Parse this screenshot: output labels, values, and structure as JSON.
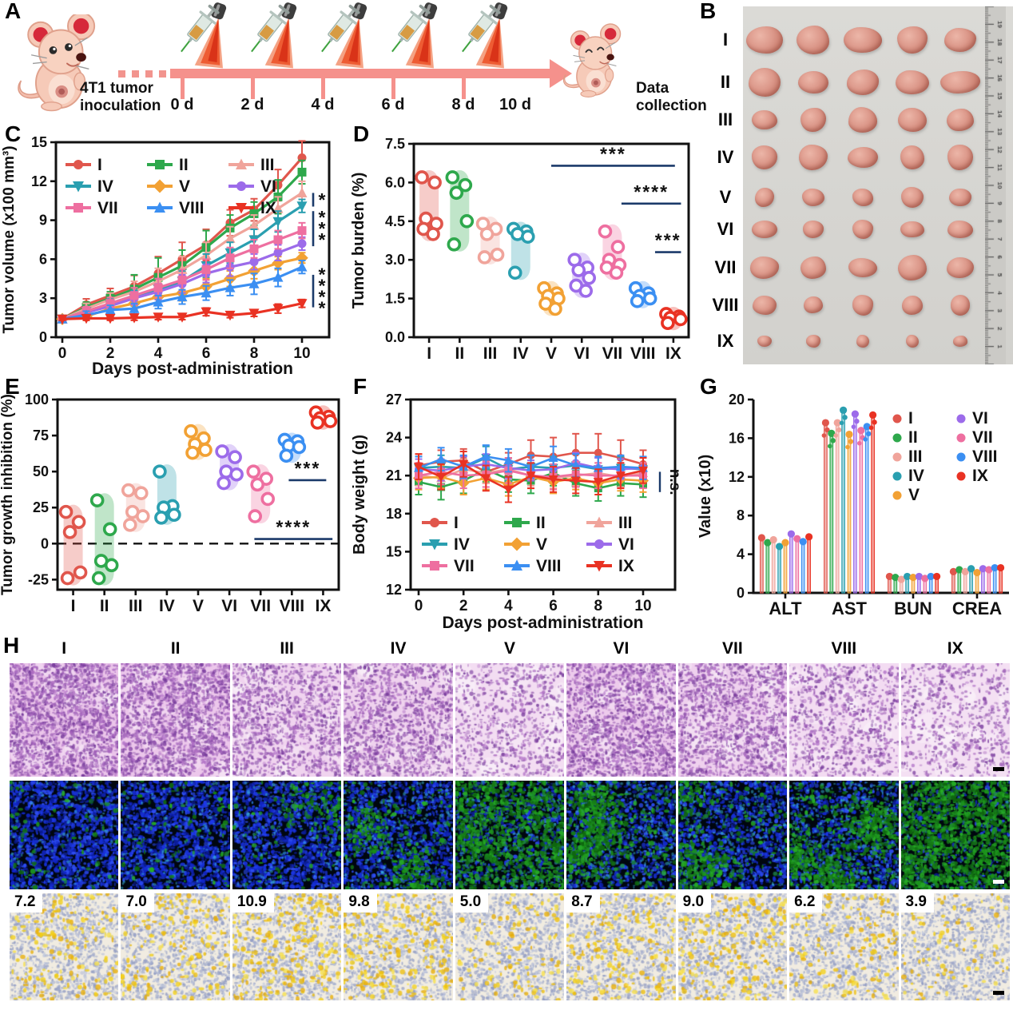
{
  "panels": {
    "A": {
      "label": "A",
      "inoculation_label": "4T1 tumor inoculation",
      "collection_label": "Data collection",
      "timeline_days": [
        "0 d",
        "2 d",
        "4 d",
        "6 d",
        "8 d",
        "10 d"
      ]
    },
    "B": {
      "label": "B",
      "row_labels": [
        "I",
        "II",
        "III",
        "IV",
        "V",
        "VI",
        "VII",
        "VIII",
        "IX"
      ],
      "columns": 5,
      "ruler_range": [
        0,
        20
      ],
      "tumor_sizes": [
        [
          44,
          35
        ],
        [
          44,
          33
        ],
        [
          36,
          29
        ],
        [
          33,
          29
        ],
        [
          28,
          23
        ],
        [
          29,
          23
        ],
        [
          33,
          28
        ],
        [
          27,
          24
        ],
        [
          18,
          15
        ]
      ]
    },
    "C": {
      "label": "C"
    },
    "D": {
      "label": "D"
    },
    "E": {
      "label": "E"
    },
    "F": {
      "label": "F"
    },
    "G": {
      "label": "G"
    },
    "H": {
      "label": "H",
      "column_labels": [
        "I",
        "II",
        "III",
        "IV",
        "V",
        "VI",
        "VII",
        "VIII",
        "IX"
      ],
      "ihc_values": [
        "7.2",
        "7.0",
        "10.9",
        "9.8",
        "5.0",
        "8.7",
        "9.0",
        "6.2",
        "3.9"
      ],
      "he_density": [
        0.95,
        0.9,
        0.55,
        0.6,
        0.28,
        0.8,
        0.62,
        0.33,
        0.22
      ],
      "fluor_green": [
        0.05,
        0.06,
        0.13,
        0.28,
        0.72,
        0.5,
        0.33,
        0.58,
        0.96
      ]
    }
  },
  "groups": [
    {
      "name": "I",
      "color": "#e0564c",
      "marker": "circle"
    },
    {
      "name": "II",
      "color": "#2ea84c",
      "marker": "square"
    },
    {
      "name": "III",
      "color": "#f0a49b",
      "marker": "triangle-up"
    },
    {
      "name": "IV",
      "color": "#2a9fb0",
      "marker": "triangle-down"
    },
    {
      "name": "V",
      "color": "#f2a134",
      "marker": "diamond"
    },
    {
      "name": "VI",
      "color": "#9c6bea",
      "marker": "circle"
    },
    {
      "name": "VII",
      "color": "#ee6fa0",
      "marker": "square"
    },
    {
      "name": "VIII",
      "color": "#3b8ff2",
      "marker": "triangle-up"
    },
    {
      "name": "IX",
      "color": "#e93223",
      "marker": "triangle-down"
    }
  ],
  "chart_data": [
    {
      "panel": "C",
      "type": "line",
      "xlabel": "Days post-administration",
      "ylabel": "Tumor volume (x100 mm³)",
      "x": [
        0,
        1,
        2,
        3,
        4,
        5,
        6,
        7,
        8,
        9,
        10
      ],
      "xticks": [
        0,
        2,
        4,
        6,
        8,
        10
      ],
      "ylim": [
        0,
        15
      ],
      "yticks": [
        0,
        3,
        6,
        9,
        12,
        15
      ],
      "legend_order": [
        [
          "I",
          "II",
          "III"
        ],
        [
          "IV",
          "V",
          "VI"
        ],
        [
          "VII",
          "VIII",
          "IX"
        ]
      ],
      "series": [
        {
          "name": "I",
          "values": [
            1.4,
            2.5,
            3.2,
            3.9,
            4.9,
            6.0,
            7.1,
            8.8,
            9.8,
            11.7,
            13.8
          ],
          "err": [
            0.15,
            0.45,
            0.55,
            0.85,
            1.3,
            1.3,
            1.2,
            1.0,
            0.85,
            1.2,
            1.3
          ]
        },
        {
          "name": "II",
          "values": [
            1.4,
            2.3,
            3.0,
            3.7,
            4.6,
            5.5,
            6.9,
            8.4,
            9.5,
            10.8,
            12.7
          ],
          "err": [
            0.15,
            0.4,
            0.5,
            1.1,
            1.5,
            1.2,
            1.3,
            1.0,
            0.9,
            1.3,
            0.9
          ]
        },
        {
          "name": "III",
          "values": [
            1.4,
            2.2,
            2.9,
            3.5,
            4.3,
            5.2,
            6.3,
            7.6,
            8.6,
            9.9,
            11.1
          ],
          "err": [
            0.15,
            0.4,
            0.5,
            0.8,
            1.0,
            1.0,
            1.0,
            0.9,
            0.8,
            0.9,
            0.9
          ]
        },
        {
          "name": "IV",
          "values": [
            1.4,
            2.0,
            2.5,
            3.0,
            3.7,
            4.3,
            5.5,
            6.5,
            7.5,
            8.9,
            10.1
          ],
          "err": [
            0.15,
            0.35,
            0.45,
            0.6,
            0.8,
            0.8,
            0.9,
            0.8,
            0.8,
            0.8,
            0.5
          ]
        },
        {
          "name": "V",
          "values": [
            1.4,
            1.6,
            2.2,
            2.6,
            3.1,
            3.4,
            3.9,
            4.5,
            5.1,
            5.7,
            6.1
          ],
          "err": [
            0.15,
            0.3,
            0.4,
            0.5,
            0.6,
            0.6,
            0.6,
            0.6,
            0.6,
            0.5,
            0.4
          ]
        },
        {
          "name": "VI",
          "values": [
            1.4,
            1.9,
            2.4,
            3.0,
            3.5,
            4.1,
            4.9,
            5.4,
            5.8,
            6.5,
            7.2
          ],
          "err": [
            0.15,
            0.3,
            0.4,
            0.5,
            0.6,
            0.7,
            0.7,
            0.7,
            0.6,
            0.6,
            0.5
          ]
        },
        {
          "name": "VII",
          "values": [
            1.4,
            2.0,
            2.6,
            3.2,
            3.8,
            4.4,
            5.2,
            6.1,
            6.8,
            7.5,
            8.2
          ],
          "err": [
            0.15,
            0.35,
            0.45,
            0.6,
            0.7,
            0.8,
            0.8,
            0.8,
            0.7,
            0.7,
            0.6
          ]
        },
        {
          "name": "VIII",
          "values": [
            1.4,
            1.7,
            2.1,
            2.2,
            2.7,
            3.1,
            3.4,
            3.8,
            4.1,
            4.6,
            5.4
          ],
          "err": [
            0.15,
            0.3,
            0.35,
            0.4,
            0.5,
            0.55,
            0.55,
            0.6,
            0.8,
            0.7,
            0.5
          ]
        },
        {
          "name": "IX",
          "values": [
            1.4,
            1.45,
            1.45,
            1.5,
            1.55,
            1.55,
            1.95,
            1.7,
            1.85,
            2.2,
            2.6
          ],
          "err": [
            0.1,
            0.15,
            0.15,
            0.2,
            0.2,
            0.2,
            0.3,
            0.2,
            0.25,
            0.35,
            0.3
          ]
        }
      ],
      "significance": [
        {
          "label": "*",
          "y_from": 10.05,
          "y_to": 11.1
        },
        {
          "label": "***",
          "y_from": 7.0,
          "y_to": 9.7
        },
        {
          "label": "****",
          "y_from": 2.3,
          "y_to": 4.8
        }
      ]
    },
    {
      "panel": "D",
      "type": "violin-scatter",
      "ylabel": "Tumor burden (%)",
      "ylim": [
        0,
        7.5
      ],
      "yticks": [
        "0.0",
        "1.5",
        "3.0",
        "4.5",
        "6.0",
        "7.5"
      ],
      "categories": [
        "I",
        "II",
        "III",
        "IV",
        "V",
        "VI",
        "VII",
        "VIII",
        "IX"
      ],
      "points": {
        "I": [
          6.2,
          6.0,
          4.6,
          4.4,
          4.2,
          4.0
        ],
        "II": [
          6.2,
          5.9,
          5.6,
          4.5,
          3.6
        ],
        "III": [
          4.4,
          4.2,
          4.0,
          3.2,
          3.1
        ],
        "IV": [
          4.2,
          4.1,
          4.0,
          3.9,
          2.5
        ],
        "V": [
          1.9,
          1.7,
          1.6,
          1.5,
          1.3,
          1.1
        ],
        "VI": [
          3.0,
          2.7,
          2.6,
          2.3,
          2.0,
          1.8
        ],
        "VII": [
          4.1,
          3.5,
          3.0,
          2.8,
          2.7,
          2.5
        ],
        "VIII": [
          1.9,
          1.7,
          1.6,
          1.5,
          1.4
        ],
        "IX": [
          0.9,
          0.8,
          0.75,
          0.7,
          0.55
        ]
      },
      "significance": [
        {
          "label": "***",
          "x_from": 4.0,
          "x_to": 8.05,
          "y": 6.65
        },
        {
          "label": "****",
          "x_from": 6.3,
          "x_to": 8.25,
          "y": 5.18
        },
        {
          "label": "***",
          "x_from": 7.4,
          "x_to": 8.25,
          "y": 3.3
        }
      ]
    },
    {
      "panel": "E",
      "type": "violin-scatter",
      "ylabel": "Tumor  growth inhibition (%)",
      "ylim": [
        -32,
        100
      ],
      "yticks": [
        -25,
        0,
        25,
        50,
        75,
        100
      ],
      "zero_line": true,
      "categories": [
        "I",
        "II",
        "III",
        "IV",
        "V",
        "VI",
        "VII",
        "VIII",
        "IX"
      ],
      "points": {
        "I": [
          22,
          15,
          8,
          -20,
          -24
        ],
        "II": [
          30,
          10,
          -12,
          -15,
          -24
        ],
        "III": [
          37,
          35,
          22,
          19,
          13
        ],
        "IV": [
          50,
          26,
          25,
          20,
          18
        ],
        "V": [
          78,
          73,
          69,
          65,
          63
        ],
        "VI": [
          64,
          60,
          50,
          48,
          42
        ],
        "VII": [
          50,
          45,
          41,
          31,
          19
        ],
        "VIII": [
          72,
          71,
          68,
          67,
          61
        ],
        "IX": [
          91,
          88,
          87,
          85,
          84
        ]
      },
      "significance": [
        {
          "label": "***",
          "x_from": 6.9,
          "x_to": 8.1,
          "y": 44
        },
        {
          "label": "****",
          "x_from": 5.8,
          "x_to": 8.3,
          "y": 3.2
        }
      ]
    },
    {
      "panel": "F",
      "type": "line",
      "xlabel": "Days post-administration",
      "ylabel": "Body weight (g)",
      "x": [
        0,
        1,
        2,
        3,
        4,
        5,
        6,
        7,
        8,
        9,
        10
      ],
      "xticks": [
        0,
        2,
        4,
        6,
        8,
        10
      ],
      "ylim": [
        12,
        27
      ],
      "yticks": [
        12,
        15,
        18,
        21,
        24,
        27
      ],
      "legend_order": [
        [
          "I",
          "II",
          "III"
        ],
        [
          "IV",
          "V",
          "VI"
        ],
        [
          "VII",
          "VIII",
          "IX"
        ]
      ],
      "ns_label": "n.s.",
      "ns_y_from": 19.7,
      "ns_y_to": 21.3,
      "series": [
        {
          "name": "I",
          "values": [
            21.8,
            22.1,
            22.2,
            21.3,
            21.9,
            22.6,
            22.5,
            22.8,
            22.8,
            22.4,
            21.9
          ],
          "err": [
            0.9,
            0.9,
            0.9,
            0.9,
            0.9,
            1.2,
            1.5,
            1.5,
            1.5,
            1.4,
            1.1
          ]
        },
        {
          "name": "II",
          "values": [
            20.5,
            20.1,
            20.6,
            21.5,
            20.7,
            20.6,
            21.2,
            20.4,
            20.0,
            20.4,
            20.3
          ],
          "err": 1.0
        },
        {
          "name": "III",
          "values": [
            21.0,
            20.8,
            21.5,
            21.2,
            21.5,
            21.0,
            20.8,
            21.0,
            21.2,
            20.9,
            21.2
          ],
          "err": 0.8
        },
        {
          "name": "IV",
          "values": [
            21.6,
            21.7,
            21.6,
            22.4,
            21.5,
            21.7,
            21.6,
            21.8,
            21.5,
            21.6,
            21.5
          ],
          "err": 0.9
        },
        {
          "name": "V",
          "values": [
            20.8,
            20.9,
            20.4,
            20.8,
            20.3,
            20.9,
            20.5,
            20.8,
            20.4,
            20.7,
            20.6
          ],
          "err": 0.9
        },
        {
          "name": "VI",
          "values": [
            21.5,
            21.4,
            21.7,
            21.9,
            21.6,
            21.4,
            21.5,
            22.0,
            21.6,
            21.5,
            21.6
          ],
          "err": 0.8
        },
        {
          "name": "VII",
          "values": [
            21.0,
            21.3,
            21.0,
            21.1,
            21.4,
            21.0,
            20.9,
            21.1,
            21.0,
            21.0,
            21.0
          ],
          "err": 1.0
        },
        {
          "name": "VIII",
          "values": [
            21.6,
            22.3,
            21.7,
            22.5,
            22.2,
            21.7,
            22.4,
            21.8,
            21.6,
            21.7,
            21.6
          ],
          "err": 0.9
        },
        {
          "name": "IX",
          "values": [
            21.7,
            20.9,
            21.9,
            20.8,
            19.9,
            21.0,
            20.7,
            20.6,
            20.5,
            21.0,
            21.4
          ],
          "err": 1.0
        }
      ]
    },
    {
      "panel": "G",
      "type": "lollipop",
      "ylabel": "Value (x10)",
      "ylim": [
        0,
        20
      ],
      "yticks": [
        0,
        4,
        8,
        12,
        16,
        20
      ],
      "categories": [
        "ALT",
        "AST",
        "BUN",
        "CREA"
      ],
      "legend_cols": [
        [
          "I",
          "II",
          "III",
          "IV",
          "V"
        ],
        [
          "VI",
          "VII",
          "VIII",
          "IX"
        ]
      ],
      "series": [
        {
          "name": "I",
          "values": [
            5.7,
            17.6,
            1.7,
            2.2
          ]
        },
        {
          "name": "II",
          "values": [
            5.2,
            16.5,
            1.6,
            2.4
          ]
        },
        {
          "name": "III",
          "values": [
            5.5,
            17.6,
            1.4,
            2.2
          ]
        },
        {
          "name": "IV",
          "values": [
            4.8,
            18.9,
            1.7,
            2.5
          ]
        },
        {
          "name": "V",
          "values": [
            5.2,
            16.4,
            1.6,
            2.1
          ]
        },
        {
          "name": "VI",
          "values": [
            6.1,
            18.5,
            1.7,
            2.5
          ]
        },
        {
          "name": "VII",
          "values": [
            5.6,
            16.8,
            1.5,
            2.4
          ]
        },
        {
          "name": "VIII",
          "values": [
            5.3,
            17.2,
            1.7,
            2.6
          ]
        },
        {
          "name": "IX",
          "values": [
            5.8,
            18.4,
            1.7,
            2.6
          ]
        }
      ]
    }
  ]
}
